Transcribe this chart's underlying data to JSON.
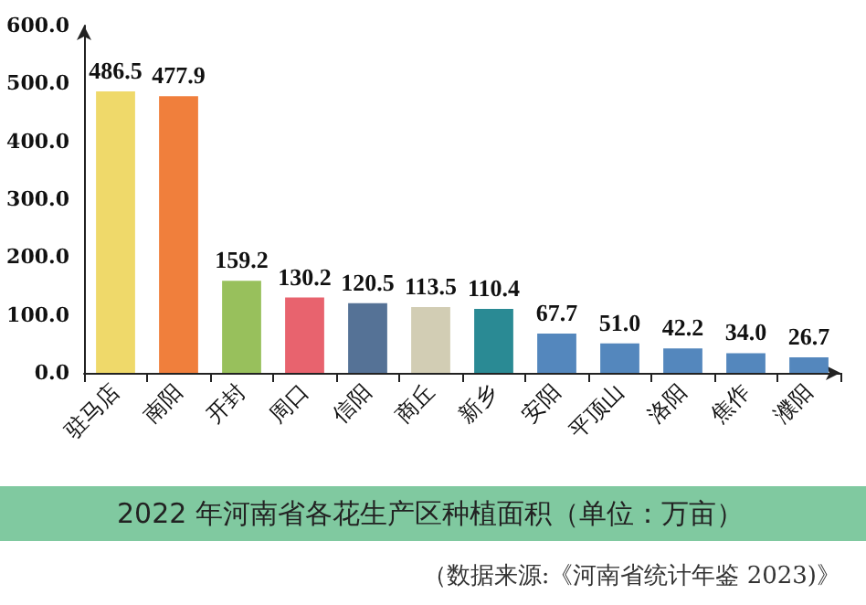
{
  "chart_data": {
    "type": "bar",
    "title": "2022 年河南省各花生产区种植面积（单位：万亩）",
    "annotations": [
      "（数据来源:《河南省统计年鉴 2023)》"
    ],
    "categories": [
      "驻马店",
      "南阳",
      "开封",
      "周口",
      "信阳",
      "商丘",
      "新乡",
      "安阳",
      "平顶山",
      "洛阳",
      "焦作",
      "濮阳"
    ],
    "values": [
      486.5,
      477.9,
      159.2,
      130.2,
      120.5,
      113.5,
      110.4,
      67.7,
      51.0,
      42.2,
      34.0,
      26.7
    ],
    "value_labels": [
      "486.5",
      "477.9",
      "159.2",
      "130.2",
      "120.5",
      "113.5",
      "110.4",
      "67.7",
      "51.0",
      "42.2",
      "34.0",
      "26.7"
    ],
    "colors": [
      "#efd96a",
      "#f07f3c",
      "#98c05c",
      "#e8636e",
      "#557296",
      "#d2cdb4",
      "#2a8a94",
      "#5487bd",
      "#5487bd",
      "#5487bd",
      "#5487bd",
      "#5487bd"
    ],
    "ylim": [
      0,
      600
    ],
    "yticks": [
      {
        "value": 0,
        "label": "0.0"
      },
      {
        "value": 100,
        "label": "100.0"
      },
      {
        "value": 200,
        "label": "200.0"
      },
      {
        "value": 300,
        "label": "300.0"
      },
      {
        "value": 400,
        "label": "400.0"
      },
      {
        "value": 500,
        "label": "500.0"
      },
      {
        "value": 600,
        "label": "600.0"
      }
    ],
    "grid": false
  }
}
